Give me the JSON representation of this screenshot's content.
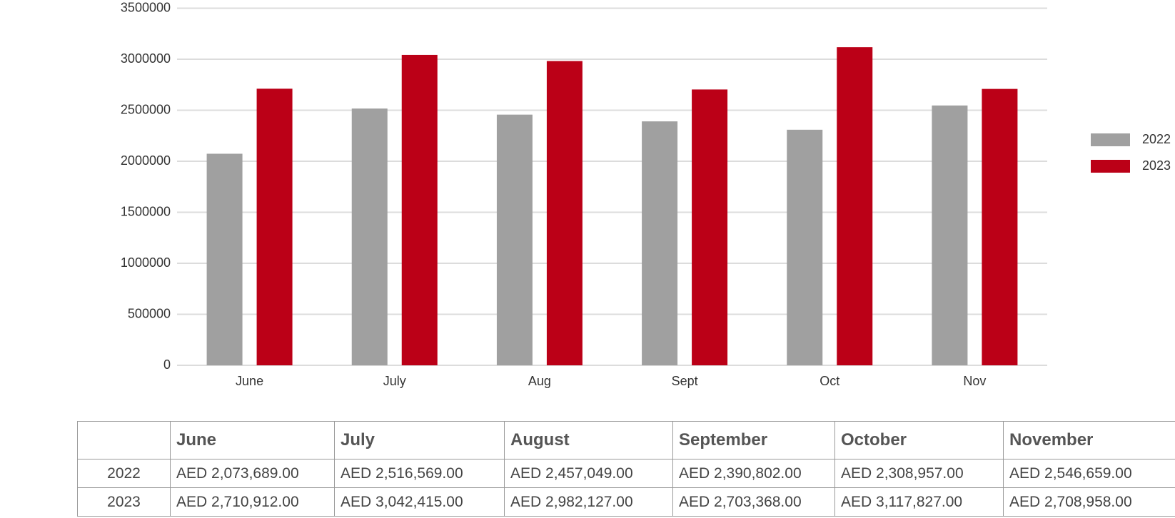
{
  "chart_data": {
    "type": "bar",
    "categories": [
      "June",
      "July",
      "Aug",
      "Sept",
      "Oct",
      "Nov"
    ],
    "series": [
      {
        "name": "2022",
        "color": "#a0a0a0",
        "values": [
          2073689,
          2516569,
          2457049,
          2390802,
          2308957,
          2546659
        ]
      },
      {
        "name": "2023",
        "color": "#bb0017",
        "values": [
          2710912,
          3042415,
          2982127,
          2703368,
          3117827,
          2708958
        ]
      }
    ],
    "ylim": [
      0,
      3500000
    ],
    "yticks": [
      0,
      500000,
      1000000,
      1500000,
      2000000,
      2500000,
      3000000,
      3500000
    ],
    "grid": true,
    "legend": "right"
  },
  "table": {
    "header": [
      "June",
      "July",
      "August",
      "September",
      "October",
      "November"
    ],
    "rows": [
      {
        "label": "2022",
        "cells": [
          "AED 2,073,689.00",
          "AED 2,516,569.00",
          "AED 2,457,049.00",
          "AED 2,390,802.00",
          "AED 2,308,957.00",
          "AED 2,546,659.00"
        ]
      },
      {
        "label": "2023",
        "cells": [
          "AED 2,710,912.00",
          "AED 3,042,415.00",
          "AED 2,982,127.00",
          "AED 2,703,368.00",
          "AED 3,117,827.00",
          "AED 2,708,958.00"
        ]
      }
    ]
  }
}
